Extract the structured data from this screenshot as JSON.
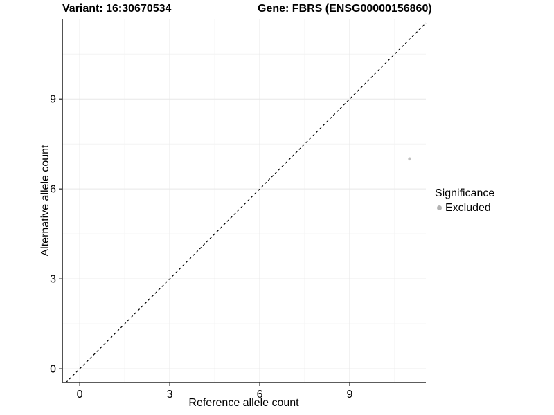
{
  "chart_data": {
    "type": "scatter",
    "title_left": "Variant: 16:30670534",
    "title_right": "Gene: FBRS (ENSG00000156860)",
    "xlabel": "Reference allele count",
    "ylabel": "Alternative allele count",
    "xlim": [
      -0.58,
      11.54
    ],
    "ylim": [
      -0.46,
      11.66
    ],
    "x_ticks": [
      0,
      3,
      6,
      9
    ],
    "y_ticks": [
      0,
      3,
      6,
      9
    ],
    "x_minor_ticks": [
      1.5,
      4.5,
      7.5,
      10.5
    ],
    "y_minor_ticks": [
      1.5,
      4.5,
      7.5,
      10.5
    ],
    "grid": "major-and-minor",
    "legend_position": "right",
    "series": [
      {
        "name": "Excluded",
        "color": "#c0c0c0",
        "point_radius": 2.3,
        "points": [
          {
            "x": 11,
            "y": 7
          }
        ]
      }
    ],
    "reference_line": {
      "kind": "identity",
      "slope": 1,
      "intercept": 0,
      "style": "dashed",
      "color": "#000000"
    },
    "legend": {
      "title": "Significance",
      "entries": [
        {
          "label": "Excluded",
          "color": "#b3b3b3"
        }
      ]
    }
  },
  "styles": {
    "panel_background": "#ffffff",
    "grid_major": "#e7e7e7",
    "grid_minor": "#f3f3f3",
    "axis_line": "#262626",
    "tick": "#262626",
    "text": "#000000"
  }
}
